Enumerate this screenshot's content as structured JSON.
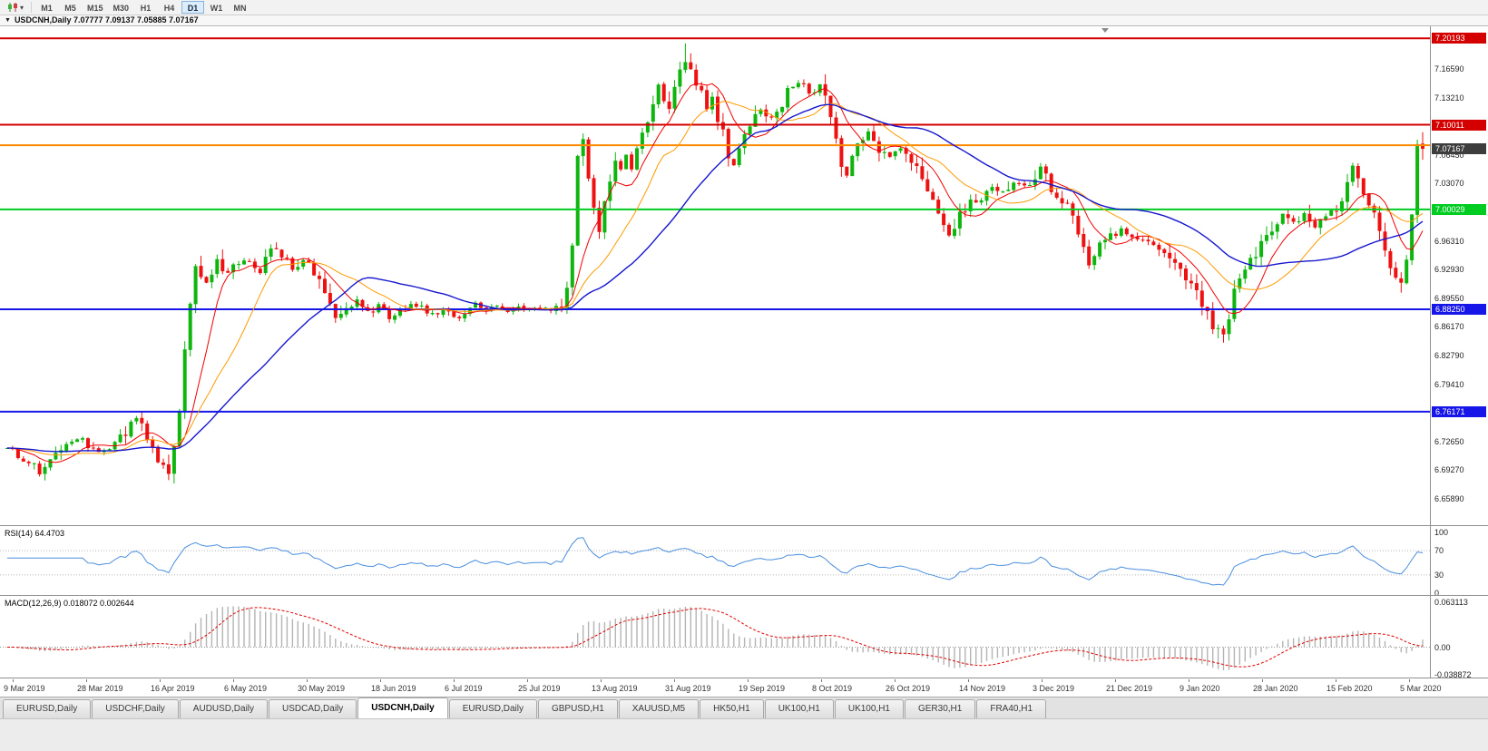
{
  "icons": {
    "collapse_arrow": "▼",
    "dropdown_caret": "▾"
  },
  "toolbar": {
    "timeframes": [
      {
        "label": "M1",
        "active": false
      },
      {
        "label": "M5",
        "active": false
      },
      {
        "label": "M15",
        "active": false
      },
      {
        "label": "M30",
        "active": false
      },
      {
        "label": "H1",
        "active": false
      },
      {
        "label": "H4",
        "active": false
      },
      {
        "label": "D1",
        "active": true
      },
      {
        "label": "W1",
        "active": false
      },
      {
        "label": "MN",
        "active": false
      }
    ]
  },
  "chart": {
    "title_text": "USDCNH,Daily  7.07777 7.09137 7.05885 7.07167",
    "symbol": "USDCNH",
    "period": "Daily",
    "price_axis_ticks": [
      "7.16590",
      "7.13210",
      "7.09830",
      "7.06450",
      "7.03070",
      "6.99690",
      "6.96310",
      "6.92930",
      "6.89550",
      "6.86170",
      "6.82790",
      "6.79410",
      "6.76030",
      "6.72650",
      "6.69270",
      "6.65890"
    ],
    "hlines": [
      {
        "price": 7.20193,
        "label": "7.20193",
        "color": "#d40000",
        "width": 2
      },
      {
        "price": 7.10011,
        "label": "7.10011",
        "color": "#d40000",
        "width": 2
      },
      {
        "price": 7.076,
        "label": "",
        "color": "#ff8a00",
        "width": 2
      },
      {
        "price": 7.00029,
        "label": "7.00029",
        "color": "#00cc21",
        "width": 2
      },
      {
        "price": 6.8825,
        "label": "6.88250",
        "color": "#1616e8",
        "width": 2
      },
      {
        "price": 6.76171,
        "label": "6.76171",
        "color": "#1616e8",
        "width": 2
      }
    ],
    "current_price_label": {
      "text": "7.07167",
      "bg": "#3d3d3d",
      "fg": "#ffffff"
    }
  },
  "chart_data": {
    "type": "candlestick",
    "symbol": "USDCNH",
    "timeframe": "D1",
    "num_candles": 264,
    "price_min": 6.6279,
    "price_max": 7.2162,
    "up_color": "#0db50d",
    "down_color": "#ee1111",
    "last_candle": {
      "open": 7.07777,
      "high": 7.09137,
      "low": 7.05885,
      "close": 7.07167
    },
    "swing_high": {
      "value": 7.196,
      "index_range": [
        115,
        135
      ]
    },
    "swing_low": {
      "value": 6.8432,
      "index_range": [
        215,
        240
      ]
    },
    "close_anchors": [
      [
        0,
        6.718
      ],
      [
        3,
        6.706
      ],
      [
        6,
        6.69
      ],
      [
        8,
        6.702
      ],
      [
        11,
        6.722
      ],
      [
        14,
        6.729
      ],
      [
        17,
        6.713
      ],
      [
        20,
        6.721
      ],
      [
        23,
        6.745
      ],
      [
        24,
        6.757
      ],
      [
        26,
        6.734
      ],
      [
        28,
        6.702
      ],
      [
        30,
        6.694
      ],
      [
        31,
        6.716
      ],
      [
        32,
        6.762
      ],
      [
        33,
        6.83
      ],
      [
        34,
        6.888
      ],
      [
        35,
        6.931
      ],
      [
        37,
        6.912
      ],
      [
        39,
        6.939
      ],
      [
        41,
        6.925
      ],
      [
        44,
        6.941
      ],
      [
        47,
        6.929
      ],
      [
        49,
        6.953
      ],
      [
        51,
        6.943
      ],
      [
        53,
        6.931
      ],
      [
        55,
        6.943
      ],
      [
        57,
        6.926
      ],
      [
        59,
        6.903
      ],
      [
        61,
        6.869
      ],
      [
        63,
        6.884
      ],
      [
        65,
        6.891
      ],
      [
        67,
        6.879
      ],
      [
        69,
        6.886
      ],
      [
        71,
        6.873
      ],
      [
        73,
        6.883
      ],
      [
        75,
        6.889
      ],
      [
        77,
        6.884
      ],
      [
        79,
        6.877
      ],
      [
        81,
        6.881
      ],
      [
        83,
        6.871
      ],
      [
        85,
        6.881
      ],
      [
        87,
        6.887
      ],
      [
        89,
        6.883
      ],
      [
        91,
        6.886
      ],
      [
        93,
        6.881
      ],
      [
        95,
        6.883
      ],
      [
        97,
        6.881
      ],
      [
        99,
        6.885
      ],
      [
        101,
        6.883
      ],
      [
        103,
        6.887
      ],
      [
        104,
        6.906
      ],
      [
        105,
        6.961
      ],
      [
        106,
        7.059
      ],
      [
        107,
        7.079
      ],
      [
        108,
        7.041
      ],
      [
        109,
        6.999
      ],
      [
        110,
        6.976
      ],
      [
        111,
        7.011
      ],
      [
        112,
        7.036
      ],
      [
        113,
        7.059
      ],
      [
        114,
        7.049
      ],
      [
        115,
        7.063
      ],
      [
        116,
        7.046
      ],
      [
        117,
        7.071
      ],
      [
        118,
        7.089
      ],
      [
        119,
        7.106
      ],
      [
        120,
        7.121
      ],
      [
        121,
        7.143
      ],
      [
        122,
        7.133
      ],
      [
        123,
        7.119
      ],
      [
        124,
        7.149
      ],
      [
        125,
        7.163
      ],
      [
        126,
        7.176
      ],
      [
        127,
        7.169
      ],
      [
        128,
        7.151
      ],
      [
        129,
        7.136
      ],
      [
        130,
        7.119
      ],
      [
        131,
        7.129
      ],
      [
        132,
        7.109
      ],
      [
        133,
        7.089
      ],
      [
        134,
        7.066
      ],
      [
        135,
        7.053
      ],
      [
        136,
        7.069
      ],
      [
        137,
        7.086
      ],
      [
        138,
        7.096
      ],
      [
        139,
        7.109
      ],
      [
        140,
        7.119
      ],
      [
        142,
        7.109
      ],
      [
        144,
        7.126
      ],
      [
        145,
        7.141
      ],
      [
        147,
        7.149
      ],
      [
        149,
        7.139
      ],
      [
        151,
        7.148
      ],
      [
        152,
        7.131
      ],
      [
        154,
        7.086
      ],
      [
        155,
        7.056
      ],
      [
        156,
        7.041
      ],
      [
        158,
        7.076
      ],
      [
        160,
        7.091
      ],
      [
        162,
        7.071
      ],
      [
        164,
        7.061
      ],
      [
        166,
        7.073
      ],
      [
        168,
        7.056
      ],
      [
        170,
        7.041
      ],
      [
        172,
        7.006
      ],
      [
        174,
        6.979
      ],
      [
        175,
        6.969
      ],
      [
        177,
        6.993
      ],
      [
        179,
        7.006
      ],
      [
        181,
        7.016
      ],
      [
        183,
        7.029
      ],
      [
        185,
        7.021
      ],
      [
        187,
        7.033
      ],
      [
        189,
        7.029
      ],
      [
        191,
        7.036
      ],
      [
        192,
        7.049
      ],
      [
        193,
        7.041
      ],
      [
        194,
        7.023
      ],
      [
        196,
        7.013
      ],
      [
        198,
        6.999
      ],
      [
        199,
        6.976
      ],
      [
        200,
        6.953
      ],
      [
        201,
        6.929
      ],
      [
        202,
        6.943
      ],
      [
        203,
        6.959
      ],
      [
        205,
        6.969
      ],
      [
        207,
        6.976
      ],
      [
        209,
        6.971
      ],
      [
        211,
        6.963
      ],
      [
        213,
        6.959
      ],
      [
        215,
        6.949
      ],
      [
        217,
        6.933
      ],
      [
        219,
        6.921
      ],
      [
        221,
        6.903
      ],
      [
        222,
        6.889
      ],
      [
        223,
        6.876
      ],
      [
        224,
        6.863
      ],
      [
        225,
        6.856
      ],
      [
        226,
        6.849
      ],
      [
        227,
        6.873
      ],
      [
        228,
        6.909
      ],
      [
        229,
        6.919
      ],
      [
        230,
        6.929
      ],
      [
        231,
        6.939
      ],
      [
        233,
        6.959
      ],
      [
        235,
        6.973
      ],
      [
        236,
        6.986
      ],
      [
        237,
        6.996
      ],
      [
        239,
        6.983
      ],
      [
        241,
        6.993
      ],
      [
        243,
        6.979
      ],
      [
        245,
        6.989
      ],
      [
        247,
        7.001
      ],
      [
        248,
        7.013
      ],
      [
        249,
        7.033
      ],
      [
        250,
        7.049
      ],
      [
        251,
        7.039
      ],
      [
        252,
        7.023
      ],
      [
        253,
        7.006
      ],
      [
        254,
        6.993
      ],
      [
        255,
        6.979
      ],
      [
        256,
        6.953
      ],
      [
        257,
        6.936
      ],
      [
        258,
        6.923
      ],
      [
        259,
        6.919
      ],
      [
        260,
        6.938
      ],
      [
        261,
        6.991
      ],
      [
        262,
        7.075
      ],
      [
        263,
        7.072
      ]
    ],
    "moving_averages": [
      {
        "period": 8,
        "color": "#f20000",
        "width": 1
      },
      {
        "period": 17,
        "color": "#ff9a00",
        "width": 1
      },
      {
        "period": 34,
        "color": "#1717cf",
        "width": 1.4
      }
    ]
  },
  "rsi": {
    "label": "RSI(14) 64.4703",
    "period": 14,
    "current": 64.4703,
    "line_color": "#4a8ede",
    "min": 0,
    "max": 100,
    "levels": [
      70,
      30
    ],
    "scale": [
      {
        "text": "100",
        "value": 100
      },
      {
        "text": "70",
        "value": 70
      },
      {
        "text": "30",
        "value": 30
      },
      {
        "text": "0",
        "value": 0
      }
    ]
  },
  "macd": {
    "label": "MACD(12,26,9) 0.018072 0.002644",
    "fast": 12,
    "slow": 26,
    "signal": 9,
    "macd_value": 0.018072,
    "signal_value": 0.002644,
    "histogram_color": "#b4b4b4",
    "signal_color": "#e00000",
    "min": -0.038872,
    "max": 0.063113,
    "scale": [
      {
        "text": "0.063113",
        "value": 0.063113
      },
      {
        "text": "0.00",
        "value": 0
      },
      {
        "text": "-0.038872",
        "value": -0.038872
      }
    ]
  },
  "time_axis": {
    "labels": [
      "9 Mar 2019",
      "28 Mar 2019",
      "16 Apr 2019",
      "6 May 2019",
      "30 May 2019",
      "18 Jun 2019",
      "6 Jul 2019",
      "25 Jul 2019",
      "13 Aug 2019",
      "31 Aug 2019",
      "19 Sep 2019",
      "8 Oct 2019",
      "26 Oct 2019",
      "14 Nov 2019",
      "3 Dec 2019",
      "21 Dec 2019",
      "9 Jan 2020",
      "28 Jan 2020",
      "15 Feb 2020",
      "5 Mar 2020"
    ]
  },
  "tabs": [
    {
      "label": "EURUSD,Daily",
      "active": false
    },
    {
      "label": "USDCHF,Daily",
      "active": false
    },
    {
      "label": "AUDUSD,Daily",
      "active": false
    },
    {
      "label": "USDCAD,Daily",
      "active": false
    },
    {
      "label": "USDCNH,Daily",
      "active": true
    },
    {
      "label": "EURUSD,Daily",
      "active": false
    },
    {
      "label": "GBPUSD,H1",
      "active": false
    },
    {
      "label": "XAUUSD,M5",
      "active": false
    },
    {
      "label": "HK50,H1",
      "active": false
    },
    {
      "label": "UK100,H1",
      "active": false
    },
    {
      "label": "UK100,H1",
      "active": false
    },
    {
      "label": "GER30,H1",
      "active": false
    },
    {
      "label": "FRA40,H1",
      "active": false
    }
  ]
}
